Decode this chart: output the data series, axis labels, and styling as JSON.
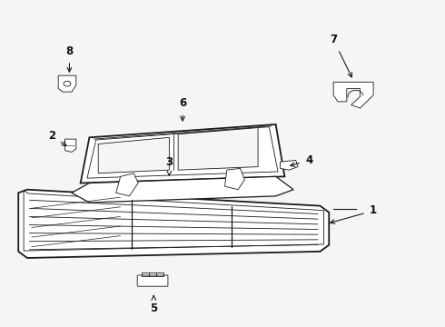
{
  "background_color": "#f5f5f5",
  "line_color": "#1a1a1a",
  "label_color": "#111111",
  "fig_width": 4.9,
  "fig_height": 3.6,
  "dpi": 100
}
